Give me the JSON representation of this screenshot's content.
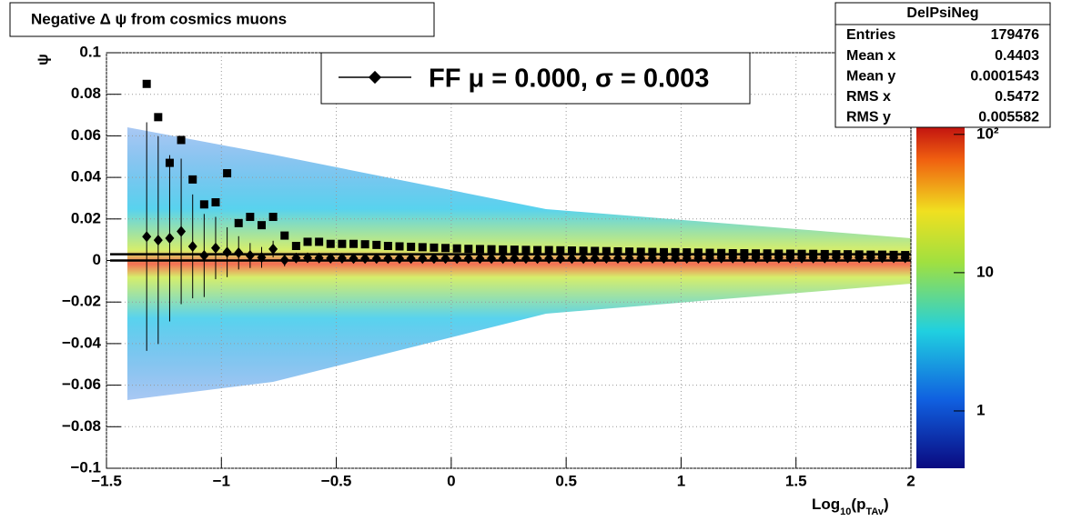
{
  "chart_data": {
    "type": "scatter",
    "title": "Negative Δ ψ from cosmics muons",
    "y_label": "ψ",
    "x_label_parts": [
      "Log",
      "10",
      "(p",
      "TAv",
      ")"
    ],
    "legend_label": "FF μ =  0.000, σ =   0.003",
    "xlim": [
      -1.5,
      2
    ],
    "ylim": [
      -0.1,
      0.1
    ],
    "grid": true,
    "xticks": [
      {
        "value": -1.5,
        "label": "−1.5"
      },
      {
        "value": -1,
        "label": "−1"
      },
      {
        "value": -0.5,
        "label": "−0.5"
      },
      0,
      0.5,
      1,
      1.5,
      2
    ],
    "yticks": [
      {
        "value": -0.1,
        "label": "−0.1"
      },
      {
        "value": -0.08,
        "label": "−0.08"
      },
      {
        "value": -0.06,
        "label": "−0.06"
      },
      {
        "value": -0.04,
        "label": "−0.04"
      },
      {
        "value": -0.02,
        "label": "−0.02"
      },
      0,
      0.02,
      0.04,
      0.06,
      0.08,
      0.1
    ],
    "zlim": [
      0.385,
      116
    ],
    "zlog": true,
    "zticks": [
      1,
      10,
      {
        "value": 100,
        "label": "10²"
      }
    ],
    "fit_lines": [
      0,
      0.003
    ],
    "x": [
      -1.325,
      -1.275,
      -1.225,
      -1.175,
      -1.125,
      -1.075,
      -1.025,
      -0.975,
      -0.925,
      -0.875,
      -0.825,
      -0.775,
      -0.725,
      -0.675,
      -0.625,
      -0.575,
      -0.525,
      -0.475,
      -0.425,
      -0.375,
      -0.325,
      -0.275,
      -0.225,
      -0.175,
      -0.125,
      -0.075,
      -0.025,
      0.025,
      0.075,
      0.125,
      0.175,
      0.225,
      0.275,
      0.325,
      0.375,
      0.425,
      0.475,
      0.525,
      0.575,
      0.625,
      0.675,
      0.725,
      0.775,
      0.825,
      0.875,
      0.925,
      0.975,
      1.025,
      1.075,
      1.125,
      1.175,
      1.225,
      1.275,
      1.325,
      1.375,
      1.425,
      1.475,
      1.525,
      1.575,
      1.625,
      1.675,
      1.725,
      1.775,
      1.825,
      1.875,
      1.925,
      1.975
    ],
    "series": [
      {
        "marker": "square",
        "color": "#000000",
        "values": [
          0.085,
          0.069,
          0.047,
          0.058,
          0.039,
          0.027,
          0.028,
          0.042,
          0.018,
          0.021,
          0.017,
          0.021,
          0.012,
          0.007,
          0.009,
          0.009,
          0.008,
          0.008,
          0.008,
          0.0078,
          0.0075,
          0.007,
          0.0068,
          0.0066,
          0.0064,
          0.0062,
          0.006,
          0.0058,
          0.0056,
          0.0055,
          0.0054,
          0.0053,
          0.0052,
          0.0051,
          0.005,
          0.005,
          0.0049,
          0.0048,
          0.0047,
          0.0046,
          0.0045,
          0.0044,
          0.0043,
          0.0042,
          0.0041,
          0.004,
          0.004,
          0.0039,
          0.0038,
          0.0037,
          0.0036,
          0.0035,
          0.0035,
          0.0034,
          0.0034,
          0.0033,
          0.0033,
          0.0032,
          0.0032,
          0.0031,
          0.003,
          0.003,
          0.0029,
          0.0028,
          0.0028,
          0.0027,
          0.0026
        ]
      },
      {
        "marker": "diamond",
        "color": "#000000",
        "values": [
          0.0115,
          0.0098,
          0.0107,
          0.014,
          0.0068,
          0.0024,
          0.006,
          0.004,
          0.0037,
          0.0024,
          0.0015,
          0.0055,
          0.0002,
          0.0012,
          0.0013,
          0.0012,
          0.0011,
          0.0011,
          0.001,
          0.001,
          0.001,
          0.001,
          0.001,
          0.001,
          0.001,
          0.001,
          0.001,
          0.001,
          0.001,
          0.001,
          0.001,
          0.001,
          0.001,
          0.001,
          0.001,
          0.001,
          0.001,
          0.001,
          0.001,
          0.001,
          0.0011,
          0.0011,
          0.0011,
          0.0011,
          0.0011,
          0.0011,
          0.0011,
          0.0011,
          0.0011,
          0.0011,
          0.0012,
          0.0012,
          0.0012,
          0.0012,
          0.0012,
          0.0012,
          0.0012,
          0.0012,
          0.0012,
          0.0012,
          0.0013,
          0.0013,
          0.0013,
          0.0013,
          0.0013,
          0.0013,
          0.0013
        ],
        "errors": [
          0.055,
          0.05,
          0.04,
          0.035,
          0.025,
          0.02,
          0.015,
          0.012,
          0.008,
          0.006,
          0.005,
          0.004,
          0.003,
          0.002,
          0.002,
          0.002,
          0.002,
          0.002,
          0.002,
          0.002,
          0.002,
          0.002,
          0.002,
          0.002,
          0.002,
          0.002,
          0.002,
          0.002,
          0.002,
          0.002,
          0.002,
          0.002,
          0.002,
          0.002,
          0.002,
          0.002,
          0.002,
          0.002,
          0.002,
          0.002,
          0.002,
          0.002,
          0.002,
          0.002,
          0.002,
          0.002,
          0.002,
          0.002,
          0.002,
          0.002,
          0.002,
          0.002,
          0.002,
          0.002,
          0.002,
          0.002,
          0.002,
          0.002,
          0.002,
          0.002,
          0.002,
          0.002,
          0.002,
          0.002,
          0.002,
          0.002,
          0.002
        ]
      }
    ],
    "stats": {
      "title": "DelPsiNeg",
      "rows": [
        [
          "Entries",
          "179476"
        ],
        [
          "Mean x",
          "0.4403"
        ],
        [
          "Mean y",
          "0.0001543"
        ],
        [
          "RMS x",
          "0.5472"
        ],
        [
          "RMS y",
          "0.005582"
        ]
      ]
    }
  }
}
